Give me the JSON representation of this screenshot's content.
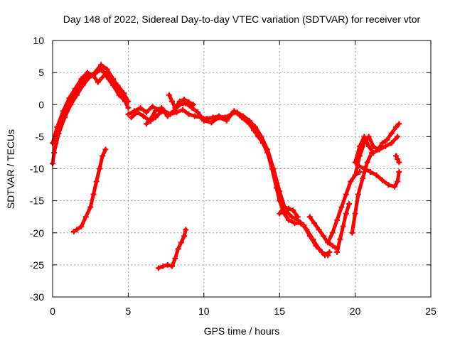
{
  "chart_data": {
    "type": "scatter",
    "title": "Day 148 of 2022, Sidereal Day-to-day VTEC variation (SDTVAR) for receiver vtor",
    "xlabel": "GPS time / hours",
    "ylabel": "SDTVAR / TECUs",
    "xlim": [
      0,
      25
    ],
    "ylim": [
      -30,
      10
    ],
    "xticks": [
      0,
      5,
      10,
      15,
      20,
      25
    ],
    "yticks": [
      -30,
      -25,
      -20,
      -15,
      -10,
      -5,
      0,
      5,
      10
    ],
    "xtick_labels": [
      "0",
      "5",
      "10",
      "15",
      "20",
      "25"
    ],
    "ytick_labels": [
      "-30",
      "-25",
      "-20",
      "-15",
      "-10",
      "-5",
      "0",
      "5",
      "10"
    ],
    "grid": true,
    "color": "#ff0000",
    "series": [
      {
        "name": "track-main-morning",
        "x": [
          0.0,
          0.2,
          0.5,
          0.8,
          1.2,
          1.6,
          2.0,
          2.4,
          2.8,
          3.2,
          3.4,
          3.7,
          4.0,
          4.4,
          4.8,
          5.0
        ],
        "y": [
          -9.2,
          -6.0,
          -3.5,
          -1.5,
          0.5,
          2.0,
          3.5,
          4.6,
          4.8,
          5.5,
          5.0,
          4.0,
          3.0,
          1.5,
          0.5,
          -0.5
        ]
      },
      {
        "name": "track-main-morning-b",
        "x": [
          0.1,
          0.4,
          0.8,
          1.2,
          1.6,
          2.0,
          2.4,
          2.8,
          3.2,
          3.6,
          4.0,
          4.4,
          4.8
        ],
        "y": [
          -7.5,
          -4.5,
          -2.0,
          0.0,
          1.5,
          3.0,
          4.2,
          5.0,
          6.2,
          5.5,
          4.0,
          2.5,
          1.0
        ]
      },
      {
        "name": "track-main-morning-c",
        "x": [
          0.0,
          0.3,
          0.7,
          1.1,
          1.5,
          1.9,
          2.3,
          2.7,
          3.0,
          3.5,
          3.9,
          4.3,
          4.7,
          5.0
        ],
        "y": [
          -6.0,
          -3.5,
          -1.0,
          1.0,
          2.5,
          4.0,
          5.0,
          4.5,
          3.5,
          4.8,
          4.0,
          3.0,
          1.8,
          0.5
        ]
      },
      {
        "name": "track-midday",
        "x": [
          5.0,
          5.4,
          5.8,
          6.2,
          6.6,
          7.0,
          7.4,
          7.8,
          8.2,
          8.6,
          9.0,
          9.4,
          9.8,
          10.2,
          10.6,
          11.0,
          11.4,
          11.8,
          12.2,
          12.6,
          13.0
        ],
        "y": [
          -1.5,
          -1.0,
          -0.5,
          -1.2,
          -0.3,
          -0.8,
          -1.0,
          -1.5,
          -1.2,
          -0.8,
          -1.5,
          -1.8,
          -2.0,
          -2.2,
          -2.0,
          -1.8,
          -2.0,
          -1.5,
          -1.2,
          -1.8,
          -2.5
        ]
      },
      {
        "name": "track-midday-b",
        "x": [
          5.2,
          5.6,
          6.0,
          6.4,
          6.8,
          7.2,
          7.6,
          8.0,
          8.4,
          8.8,
          9.2,
          9.6,
          10.0,
          10.5,
          11.0,
          11.5,
          12.0,
          12.5,
          13.0
        ],
        "y": [
          -2.0,
          -1.2,
          -1.8,
          -2.5,
          -1.0,
          -0.5,
          -1.8,
          -1.0,
          0.0,
          0.2,
          -0.5,
          -1.2,
          -2.5,
          -2.8,
          -2.0,
          -2.5,
          -1.0,
          -2.0,
          -3.0
        ]
      },
      {
        "name": "track-midday-c",
        "x": [
          6.2,
          6.5,
          6.8,
          7.0,
          7.3
        ],
        "y": [
          -3.0,
          -2.5,
          -2.0,
          -1.5,
          -1.0
        ]
      },
      {
        "name": "track-midday-d",
        "x": [
          7.7,
          7.9,
          8.1,
          8.4,
          8.7,
          9.0,
          9.3
        ],
        "y": [
          1.5,
          0.5,
          -0.5,
          0.5,
          0.8,
          0.4,
          0.0
        ]
      },
      {
        "name": "track-descent",
        "x": [
          13.0,
          13.3,
          13.6,
          13.9,
          14.2,
          14.5,
          14.8,
          15.0,
          15.3,
          15.6,
          16.0,
          16.4,
          16.8,
          17.2,
          17.6,
          18.0,
          18.3
        ],
        "y": [
          -3.0,
          -4.0,
          -5.0,
          -6.0,
          -7.5,
          -10.0,
          -13.0,
          -15.0,
          -17.0,
          -18.0,
          -18.5,
          -18.5,
          -19.5,
          -21.0,
          -22.5,
          -23.5,
          -23.0
        ]
      },
      {
        "name": "track-descent-b",
        "x": [
          13.0,
          13.4,
          13.8,
          14.2,
          14.6,
          15.0,
          15.4,
          15.8,
          16.2,
          16.6,
          17.0,
          17.4,
          17.8,
          18.2
        ],
        "y": [
          -2.5,
          -3.5,
          -5.0,
          -7.0,
          -10.0,
          -13.5,
          -16.5,
          -17.5,
          -18.0,
          -18.8,
          -20.5,
          -22.0,
          -23.0,
          -23.5
        ]
      },
      {
        "name": "track-descent-c",
        "x": [
          15.0,
          15.3,
          15.6,
          15.9,
          16.2
        ],
        "y": [
          -17.0,
          -16.0,
          -16.2,
          -16.5,
          -17.5
        ]
      },
      {
        "name": "track-recovery",
        "x": [
          17.0,
          17.3,
          17.6,
          17.9,
          18.2,
          18.5,
          18.8
        ],
        "y": [
          -17.5,
          -18.5,
          -19.5,
          -20.5,
          -21.5,
          -22.0,
          -22.5
        ]
      },
      {
        "name": "track-recovery-b",
        "x": [
          18.8,
          19.0,
          19.2,
          19.4,
          19.6
        ],
        "y": [
          -23.0,
          -21.0,
          -19.0,
          -17.0,
          -15.5
        ]
      },
      {
        "name": "track-recovery-c",
        "x": [
          18.2,
          18.5,
          18.8,
          19.1,
          19.4,
          19.7,
          20.0,
          20.3
        ],
        "y": [
          -21.5,
          -20.0,
          -18.0,
          -16.0,
          -14.0,
          -12.0,
          -11.0,
          -10.5
        ]
      },
      {
        "name": "track-recovery-d",
        "x": [
          19.8,
          20.0,
          20.2,
          20.5,
          20.8,
          21.1
        ],
        "y": [
          -20.0,
          -17.0,
          -14.0,
          -11.5,
          -9.0,
          -7.5
        ]
      },
      {
        "name": "track-evening",
        "x": [
          20.0,
          20.3,
          20.6,
          20.9,
          21.2,
          21.5,
          21.8,
          22.1,
          22.4,
          22.7,
          22.9
        ],
        "y": [
          -11.0,
          -8.0,
          -6.0,
          -5.0,
          -6.5,
          -7.0,
          -6.0,
          -5.5,
          -4.5,
          -3.5,
          -3.0
        ]
      },
      {
        "name": "track-evening-b",
        "x": [
          20.0,
          20.3,
          20.6,
          20.9,
          21.2,
          21.6,
          22.0,
          22.4,
          22.8
        ],
        "y": [
          -9.0,
          -6.5,
          -5.0,
          -6.5,
          -7.5,
          -7.0,
          -6.5,
          -6.0,
          -5.0
        ]
      },
      {
        "name": "track-evening-c",
        "x": [
          20.2,
          20.6,
          21.0,
          21.4,
          21.8,
          22.2,
          22.6,
          22.8,
          22.9
        ],
        "y": [
          -9.5,
          -10.0,
          -10.5,
          -11.0,
          -11.8,
          -12.5,
          -12.8,
          -12.0,
          -10.5
        ]
      },
      {
        "name": "track-evening-d",
        "x": [
          22.7,
          22.8,
          22.9
        ],
        "y": [
          -8.0,
          -8.5,
          -9.0
        ]
      },
      {
        "name": "track-isolated-early",
        "x": [
          1.4,
          1.6,
          1.9,
          2.2,
          2.5,
          2.7,
          2.9,
          3.1,
          3.3,
          3.5
        ],
        "y": [
          -19.8,
          -19.5,
          -19.0,
          -17.5,
          -16.0,
          -14.0,
          -12.0,
          -10.0,
          -8.0,
          -7.0
        ]
      },
      {
        "name": "track-isolated-midday",
        "x": [
          7.0,
          7.3,
          7.6,
          7.9,
          8.1,
          8.3,
          8.5,
          8.7,
          8.8
        ],
        "y": [
          -25.5,
          -25.2,
          -25.0,
          -25.2,
          -24.0,
          -22.5,
          -21.5,
          -20.5,
          -19.5
        ]
      }
    ]
  }
}
